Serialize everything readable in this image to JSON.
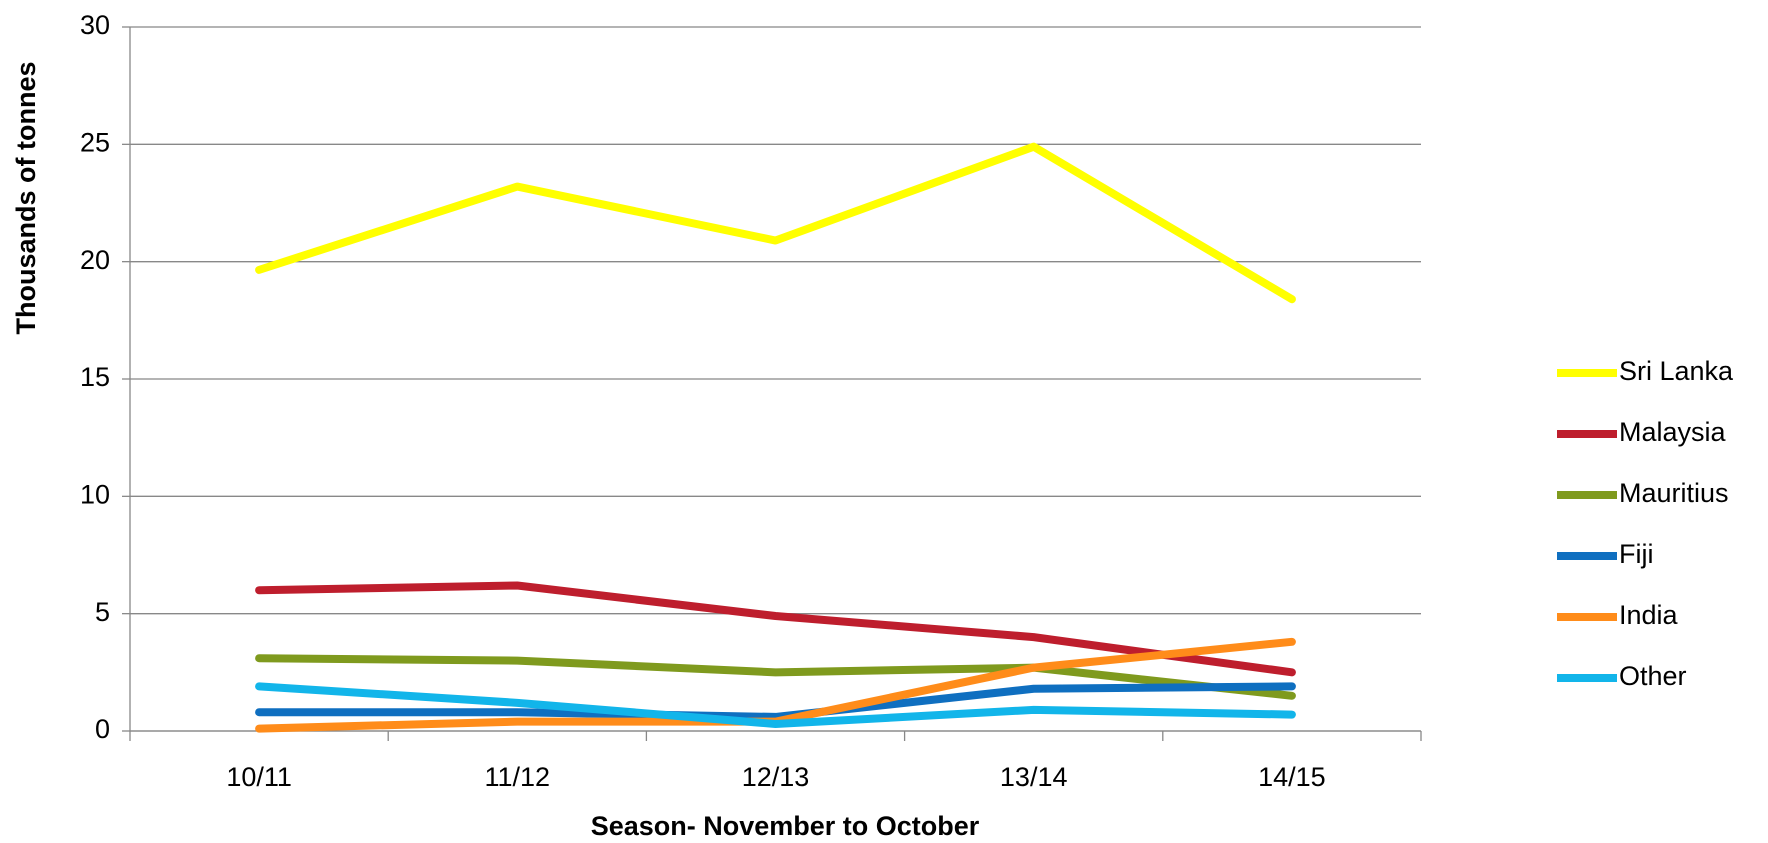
{
  "chart_data": {
    "type": "line",
    "x_label": "Season- November to October",
    "y_label": "Thousands of tonnes",
    "categories": [
      "10/11",
      "11/12",
      "12/13",
      "13/14",
      "14/15"
    ],
    "series": [
      {
        "name": "Sri Lanka",
        "color": "#ffff00",
        "values": [
          19.65,
          23.2,
          20.9,
          24.9,
          18.4
        ]
      },
      {
        "name": "Malaysia",
        "color": "#be1e2d",
        "values": [
          6.0,
          6.2,
          4.9,
          4.0,
          2.5
        ]
      },
      {
        "name": "Mauritius",
        "color": "#7f9a1e",
        "values": [
          3.1,
          3.0,
          2.5,
          2.7,
          1.5
        ]
      },
      {
        "name": "Fiji",
        "color": "#0f6fc0",
        "values": [
          0.8,
          0.8,
          0.6,
          1.8,
          1.9
        ]
      },
      {
        "name": "India",
        "color": "#ff8c1a",
        "values": [
          0.1,
          0.4,
          0.4,
          2.7,
          3.8
        ]
      },
      {
        "name": "Other",
        "color": "#12b5ea",
        "values": [
          1.9,
          1.2,
          0.3,
          0.9,
          0.7
        ]
      }
    ],
    "ylim": [
      0,
      30
    ],
    "yticks": [
      0,
      5,
      10,
      15,
      20,
      25,
      30
    ],
    "grid": true,
    "legend": "right"
  }
}
